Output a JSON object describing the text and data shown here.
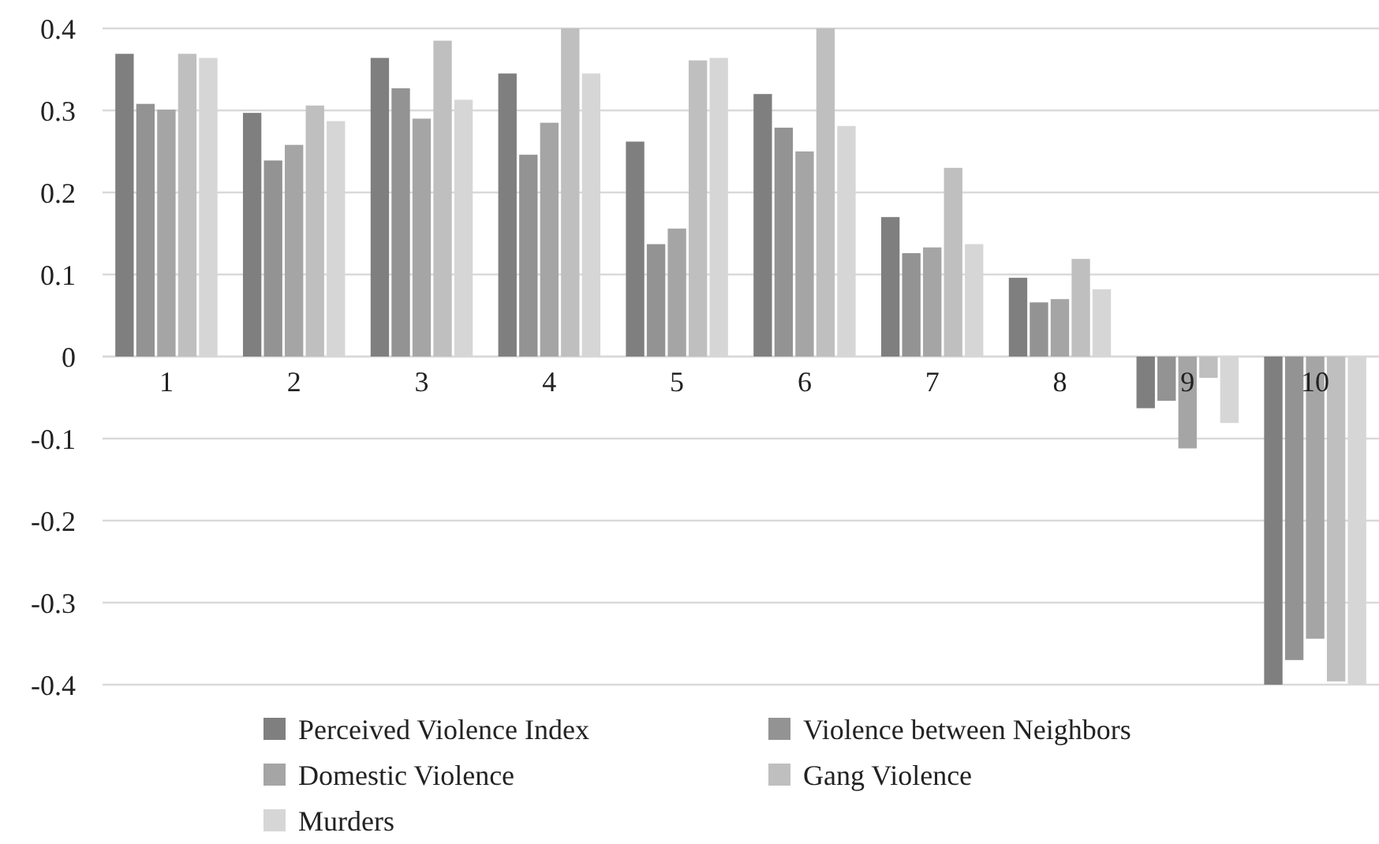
{
  "chart_data": {
    "type": "bar",
    "categories": [
      "1",
      "2",
      "3",
      "4",
      "5",
      "6",
      "7",
      "8",
      "9",
      "10"
    ],
    "series": [
      {
        "name": "Perceived Violence Index",
        "color": "#7f7f7f",
        "values": [
          0.369,
          0.297,
          0.364,
          0.345,
          0.262,
          0.32,
          0.17,
          0.096,
          -0.063,
          -0.4
        ]
      },
      {
        "name": "Violence between Neighbors",
        "color": "#939393",
        "values": [
          0.308,
          0.239,
          0.327,
          0.246,
          0.137,
          0.279,
          0.126,
          0.066,
          -0.054,
          -0.37
        ]
      },
      {
        "name": "Domestic Violence",
        "color": "#a5a5a5",
        "values": [
          0.301,
          0.258,
          0.29,
          0.285,
          0.156,
          0.25,
          0.133,
          0.07,
          -0.112,
          -0.344
        ]
      },
      {
        "name": "Gang Violence",
        "color": "#bfbfbf",
        "values": [
          0.369,
          0.306,
          0.385,
          0.4,
          0.361,
          0.4,
          0.23,
          0.119,
          -0.026,
          -0.396
        ]
      },
      {
        "name": "Murders",
        "color": "#d6d6d6",
        "values": [
          0.364,
          0.287,
          0.313,
          0.345,
          0.364,
          0.281,
          0.137,
          0.082,
          -0.081,
          -0.4
        ]
      }
    ],
    "ylim": [
      -0.4,
      0.4
    ],
    "yticks": [
      0.4,
      0.3,
      0.2,
      0.1,
      0,
      -0.1,
      -0.2,
      -0.3,
      -0.4
    ],
    "grid": "y",
    "legend": "bottom"
  }
}
